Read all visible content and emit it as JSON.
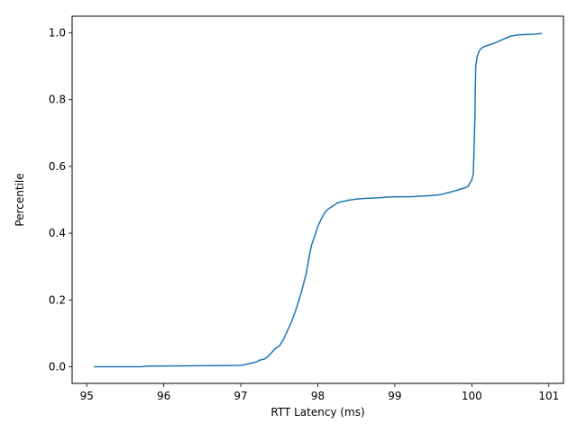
{
  "chart_data": {
    "type": "line",
    "title": "",
    "xlabel": "RTT Latency (ms)",
    "ylabel": "Percentile",
    "xlim": [
      94.81,
      101.19
    ],
    "ylim": [
      -0.05,
      1.05
    ],
    "x_ticks": [
      95,
      96,
      97,
      98,
      99,
      100,
      101
    ],
    "y_ticks": [
      0.0,
      0.2,
      0.4,
      0.6,
      0.8,
      1.0
    ],
    "x_tick_labels": [
      "95",
      "96",
      "97",
      "98",
      "99",
      "100",
      "101"
    ],
    "y_tick_labels": [
      "0.0",
      "0.2",
      "0.4",
      "0.6",
      "0.8",
      "1.0"
    ],
    "grid": false,
    "legend": "none",
    "series": [
      {
        "color": "#1f77b4",
        "x": [
          95.1,
          95.7,
          95.8,
          96.5,
          97.0,
          97.05,
          97.1,
          97.2,
          97.25,
          97.3,
          97.35,
          97.4,
          97.45,
          97.5,
          97.55,
          97.6,
          97.65,
          97.7,
          97.75,
          97.8,
          97.85,
          97.88,
          97.9,
          97.92,
          97.95,
          97.98,
          98.0,
          98.05,
          98.1,
          98.15,
          98.2,
          98.25,
          98.3,
          98.35,
          98.4,
          98.5,
          98.6,
          98.8,
          98.9,
          99.0,
          99.2,
          99.35,
          99.5,
          99.6,
          99.7,
          99.8,
          99.9,
          99.95,
          100.0,
          100.02,
          100.04,
          100.05,
          100.07,
          100.1,
          100.15,
          100.2,
          100.3,
          100.4,
          100.5,
          100.6,
          100.7,
          100.8,
          100.9
        ],
        "y": [
          0.0,
          0.0,
          0.002,
          0.003,
          0.004,
          0.006,
          0.009,
          0.014,
          0.02,
          0.022,
          0.03,
          0.042,
          0.055,
          0.062,
          0.08,
          0.105,
          0.13,
          0.16,
          0.195,
          0.235,
          0.28,
          0.32,
          0.345,
          0.365,
          0.385,
          0.405,
          0.42,
          0.445,
          0.465,
          0.475,
          0.482,
          0.49,
          0.494,
          0.496,
          0.499,
          0.502,
          0.504,
          0.506,
          0.508,
          0.509,
          0.509,
          0.511,
          0.513,
          0.516,
          0.522,
          0.528,
          0.535,
          0.54,
          0.56,
          0.58,
          0.75,
          0.9,
          0.93,
          0.948,
          0.958,
          0.962,
          0.97,
          0.98,
          0.99,
          0.994,
          0.995,
          0.996,
          0.998
        ]
      }
    ]
  }
}
